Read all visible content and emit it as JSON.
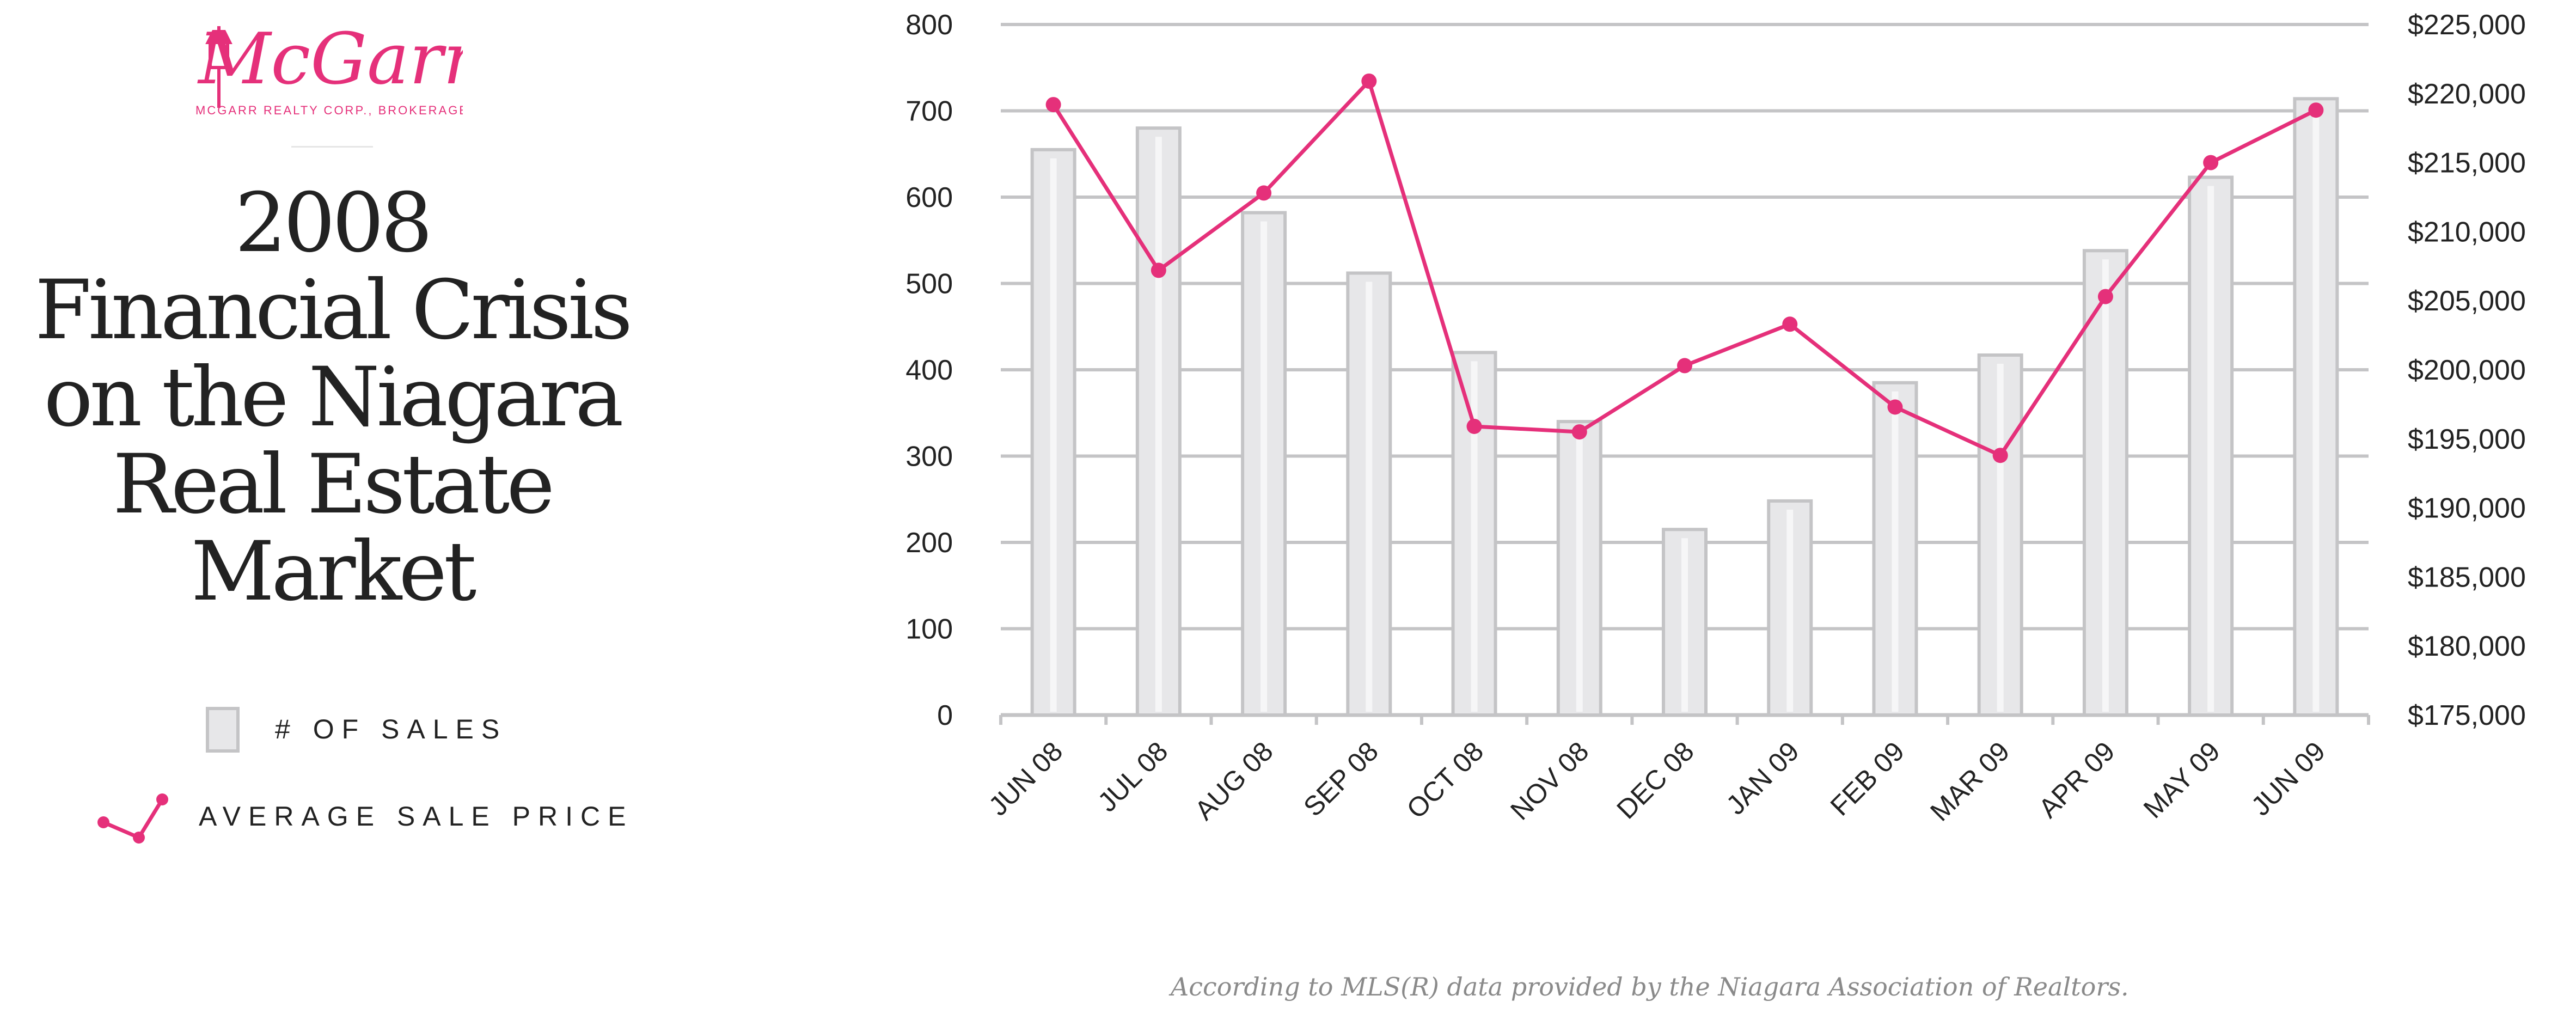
{
  "brand": {
    "logo_name": "McGarr",
    "logo_subtitle": "MCGARR REALTY CORP., BROKERAGE",
    "accent_color": "#e5307a"
  },
  "title_lines": [
    "2008",
    "Financial Crisis",
    "on the Niagara",
    "Real Estate",
    "Market"
  ],
  "legend": {
    "bars_label": "# OF SALES",
    "line_label": "AVERAGE SALE PRICE"
  },
  "footnote": "According to MLS(R) data provided by the Niagara Association of Realtors.",
  "chart_data": {
    "type": "bar",
    "categories": [
      "JUN 08",
      "JUL 08",
      "AUG 08",
      "SEP 08",
      "OCT 08",
      "NOV 08",
      "DEC 08",
      "JAN 09",
      "FEB 09",
      "MAR 09",
      "APR 09",
      "MAY 09",
      "JUN 09"
    ],
    "series": [
      {
        "name": "# OF SALES",
        "type": "bar",
        "axis": "left",
        "values": [
          655,
          680,
          582,
          512,
          420,
          340,
          215,
          248,
          385,
          417,
          538,
          623,
          714
        ],
        "color": "#e7e7e9",
        "stroke": "#c4c4c6"
      },
      {
        "name": "AVERAGE SALE PRICE",
        "type": "line",
        "axis": "right",
        "values": [
          219200,
          207200,
          212800,
          220900,
          195900,
          195500,
          200300,
          203300,
          197300,
          193800,
          205300,
          215000,
          218800
        ],
        "color": "#e5307a"
      }
    ],
    "y_left": {
      "ylim": [
        0,
        800
      ],
      "ticks": [
        "0",
        "100",
        "200",
        "300",
        "400",
        "500",
        "600",
        "700",
        "800"
      ]
    },
    "y_right": {
      "ylim": [
        175000,
        225000
      ],
      "ticks": [
        "$175,000",
        "$180,000",
        "$185,000",
        "$190,000",
        "$195,000",
        "$200,000",
        "$205,000",
        "$210,000",
        "$215,000",
        "$220,000",
        "$225,000"
      ]
    },
    "grid": true,
    "grid_color": "#c4c4c6"
  }
}
